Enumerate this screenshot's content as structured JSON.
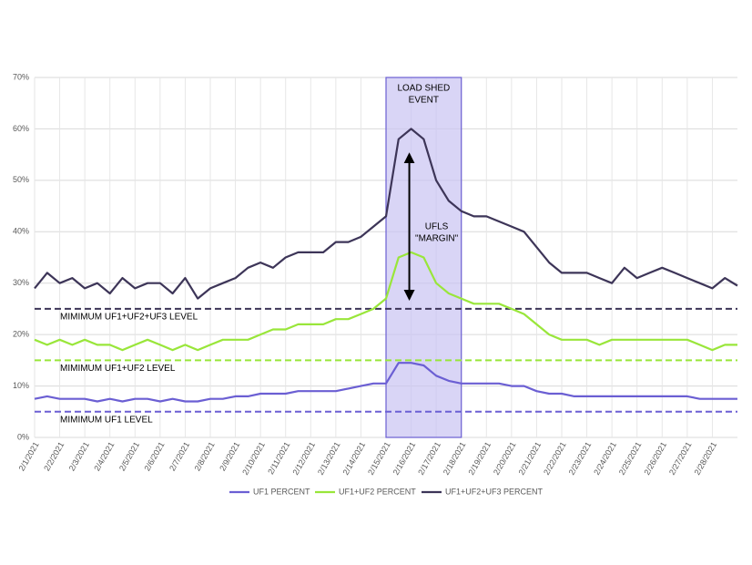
{
  "chart_data": {
    "type": "line",
    "categories": [
      "2/1/2021",
      null,
      "2/2/2021",
      null,
      "2/3/2021",
      null,
      "2/4/2021",
      null,
      "2/5/2021",
      null,
      "2/6/2021",
      null,
      "2/7/2021",
      null,
      "2/8/2021",
      null,
      "2/9/2021",
      null,
      "2/10/2021",
      null,
      "2/11/2021",
      null,
      "2/12/2021",
      null,
      "2/13/2021",
      null,
      "2/14/2021",
      null,
      "2/15/2021",
      null,
      "2/16/2021",
      null,
      "2/17/2021",
      null,
      "2/18/2021",
      null,
      "2/19/2021",
      null,
      "2/20/2021",
      null,
      "2/21/2021",
      null,
      "2/22/2021",
      null,
      "2/23/2021",
      null,
      "2/24/2021",
      null,
      "2/25/2021",
      null,
      "2/26/2021",
      null,
      "2/27/2021",
      null,
      "2/28/2021",
      null,
      null
    ],
    "series": [
      {
        "name": "UF1 PERCENT",
        "color": "#6b5fd3",
        "values": [
          7.5,
          8,
          7.5,
          7.5,
          7.5,
          7,
          7.5,
          7,
          7.5,
          7.5,
          7,
          7.5,
          7,
          7,
          7.5,
          7.5,
          8,
          8,
          8.5,
          8.5,
          8.5,
          9,
          9,
          9,
          9,
          9.5,
          10,
          10.5,
          10.5,
          14.5,
          14.5,
          14,
          12,
          11,
          10.5,
          10.5,
          10.5,
          10.5,
          10,
          10,
          9,
          8.5,
          8.5,
          8,
          8,
          8,
          8,
          8,
          8,
          8,
          8,
          8,
          8,
          7.5,
          7.5,
          7.5,
          7.5
        ]
      },
      {
        "name": "UF1+UF2 PERCENT",
        "color": "#99e63a",
        "values": [
          19,
          18,
          19,
          18,
          19,
          18,
          18,
          17,
          18,
          19,
          18,
          17,
          18,
          17,
          18,
          19,
          19,
          19,
          20,
          21,
          21,
          22,
          22,
          22,
          23,
          23,
          24,
          25,
          27,
          35,
          36,
          35,
          30,
          28,
          27,
          26,
          26,
          26,
          25,
          24,
          22,
          20,
          19,
          19,
          19,
          18,
          19,
          19,
          19,
          19,
          19,
          19,
          19,
          18,
          17,
          18,
          18
        ]
      },
      {
        "name": "UF1+UF2+UF3 PERCENT",
        "color": "#3d3558",
        "values": [
          29,
          32,
          30,
          31,
          29,
          30,
          28,
          31,
          29,
          30,
          30,
          28,
          31,
          27,
          29,
          30,
          31,
          33,
          34,
          33,
          35,
          36,
          36,
          36,
          38,
          38,
          39,
          41,
          43,
          58,
          60,
          58,
          50,
          46,
          44,
          43,
          43,
          42,
          41,
          40,
          37,
          34,
          32,
          32,
          32,
          31,
          30,
          33,
          31,
          32,
          33,
          32,
          31,
          30,
          29,
          31,
          29.5
        ]
      }
    ],
    "ylim": [
      0,
      70
    ],
    "yticks": [
      {
        "value": 0,
        "label": "0%"
      },
      {
        "value": 10,
        "label": "10%"
      },
      {
        "value": 20,
        "label": "20%"
      },
      {
        "value": 30,
        "label": "30%"
      },
      {
        "value": 40,
        "label": "40%"
      },
      {
        "value": 50,
        "label": "50%"
      },
      {
        "value": 60,
        "label": "60%"
      },
      {
        "value": 70,
        "label": "70%"
      }
    ],
    "grid": true,
    "reference_lines": [
      {
        "value": 25,
        "label": "MIMIMUM UF1+UF2+UF3 LEVEL",
        "color": "#3d3558"
      },
      {
        "value": 15,
        "label": "MIMIMUM UF1+UF2 LEVEL",
        "color": "#99e63a"
      },
      {
        "value": 5,
        "label": "MIMIMUM UF1 LEVEL",
        "color": "#6b5fd3"
      }
    ],
    "shade": {
      "from": "2/15/2021",
      "to": "2/18/2021",
      "label": [
        "LOAD SHED",
        "EVENT"
      ],
      "color": "#c9c3f2"
    },
    "arrow": {
      "at": "2/16/2021",
      "from": 27,
      "to": 55,
      "label": [
        "UFLS",
        "\"MARGIN\""
      ]
    },
    "legend": "bottom"
  }
}
